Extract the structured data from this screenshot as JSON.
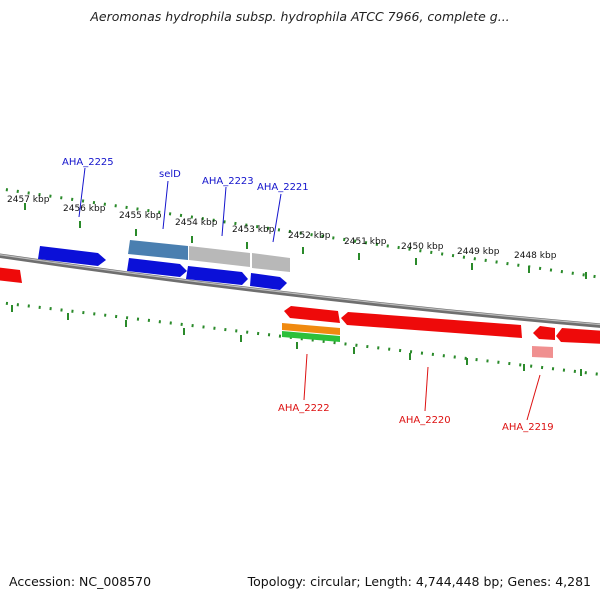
{
  "title": "Aeromonas hydrophila subsp. hydrophila ATCC 7966, complete g...",
  "footer": {
    "accession": "Accession: NC_008570",
    "summary": "Topology: circular; Length: 4,744,448 bp; Genes: 4,281"
  },
  "colors": {
    "forward_cds": "#0b10d8",
    "reverse_cds": "#ee0a0a",
    "forward_label": "#1414cc",
    "reverse_label": "#dd1111",
    "tick": "#2a8a2a",
    "backbone": "#888888"
  },
  "scale": {
    "unit": "kbp",
    "ticks": [
      "2457 kbp",
      "2456 kbp",
      "2455 kbp",
      "2454 kbp",
      "2453 kbp",
      "2452 kbp",
      "2451 kbp",
      "2450 kbp",
      "2449 kbp",
      "2448 kbp"
    ]
  },
  "genes": {
    "forward_labels": [
      "AHA_2225",
      "selD",
      "AHA_2223",
      "AHA_2221"
    ],
    "reverse_labels": [
      "AHA_2222",
      "AHA_2220",
      "AHA_2219"
    ]
  }
}
